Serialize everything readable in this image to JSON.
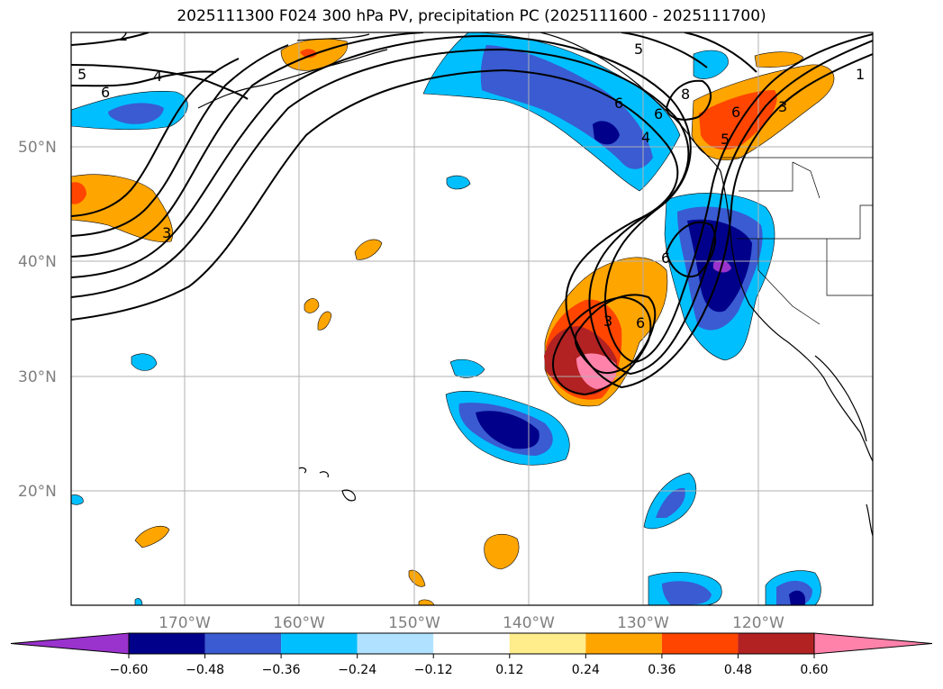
{
  "title": "2025111300 F024 300 hPa PV, precipitation PC (2025111600 - 2025111700)",
  "map": {
    "lat_labels": [
      "50°N",
      "40°N",
      "30°N",
      "20°N"
    ],
    "lon_labels": [
      "170°W",
      "160°W",
      "150°W",
      "140°W",
      "130°W",
      "120°W"
    ],
    "pv_contour_labels": [
      "2",
      "5",
      "4",
      "6",
      "5",
      "3",
      "3",
      "6",
      "6",
      "5",
      "6",
      "8",
      "4",
      "1",
      "6",
      "3",
      "6"
    ]
  },
  "colorbar": {
    "ticks": [
      "−0.60",
      "−0.48",
      "−0.36",
      "−0.24",
      "−0.12",
      "0.12",
      "0.24",
      "0.36",
      "0.48",
      "0.60"
    ],
    "colors": [
      "#9a32cd",
      "#00008b",
      "#3a5bd1",
      "#00bfff",
      "#b0e2ff",
      "#ffffff",
      "#ffec8b",
      "#ffa500",
      "#ff4500",
      "#b22222",
      "#ff82ab"
    ]
  }
}
